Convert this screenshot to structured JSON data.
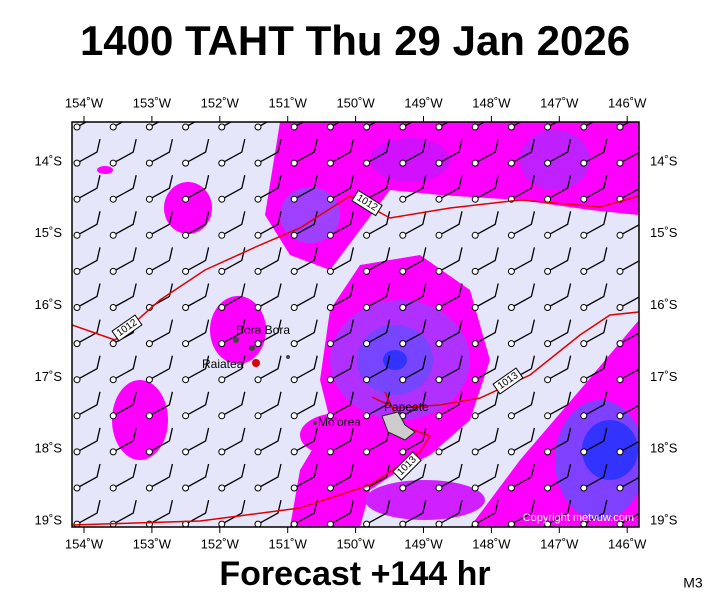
{
  "title": "1400 TAHT Thu 29 Jan 2026",
  "lon_labels": [
    "154˚W",
    "153˚W",
    "152˚W",
    "151˚W",
    "150˚W",
    "149˚W",
    "148˚W",
    "147˚W",
    "146˚W"
  ],
  "lat_labels": [
    "14˚S",
    "15˚S",
    "16˚S",
    "17˚S",
    "18˚S",
    "19˚S"
  ],
  "places": [
    "Bora Bora",
    "Raiatea",
    "Mo'orea",
    "Papeete"
  ],
  "isobar_labels": [
    "1012",
    "1012",
    "1013",
    "1013"
  ],
  "copyright": "Copyright metvuw.com",
  "footer": "Forecast +144 hr",
  "model": "M3"
}
